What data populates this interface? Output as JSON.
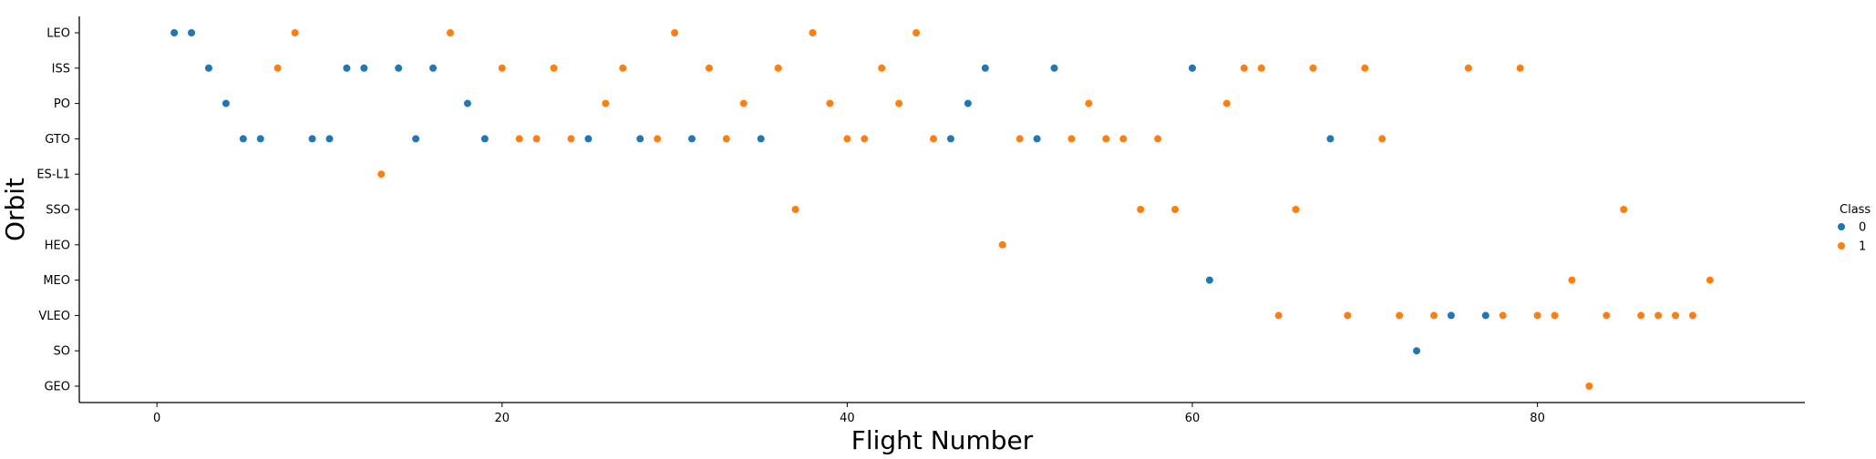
{
  "chart_data": {
    "type": "scatter",
    "title": "",
    "xlabel": "Flight Number",
    "ylabel": "Orbit",
    "xlim": [
      -4.5,
      95.5
    ],
    "xticks": [
      0,
      20,
      40,
      60,
      80
    ],
    "categories": [
      "LEO",
      "ISS",
      "PO",
      "GTO",
      "ES-L1",
      "SSO",
      "HEO",
      "MEO",
      "VLEO",
      "SO",
      "GEO"
    ],
    "grid": false,
    "legend": {
      "title": "Class",
      "placement": "right",
      "entries": [
        "0",
        "1"
      ]
    },
    "colors": {
      "0": "#1f77b4",
      "1": "#ff7f0e"
    },
    "series": [
      {
        "name": "0",
        "points": [
          {
            "x": 1,
            "y": "LEO"
          },
          {
            "x": 2,
            "y": "LEO"
          },
          {
            "x": 3,
            "y": "ISS"
          },
          {
            "x": 4,
            "y": "PO"
          },
          {
            "x": 5,
            "y": "GTO"
          },
          {
            "x": 6,
            "y": "GTO"
          },
          {
            "x": 9,
            "y": "GTO"
          },
          {
            "x": 10,
            "y": "GTO"
          },
          {
            "x": 11,
            "y": "ISS"
          },
          {
            "x": 12,
            "y": "ISS"
          },
          {
            "x": 14,
            "y": "ISS"
          },
          {
            "x": 15,
            "y": "GTO"
          },
          {
            "x": 16,
            "y": "ISS"
          },
          {
            "x": 18,
            "y": "PO"
          },
          {
            "x": 19,
            "y": "GTO"
          },
          {
            "x": 25,
            "y": "GTO"
          },
          {
            "x": 28,
            "y": "GTO"
          },
          {
            "x": 31,
            "y": "GTO"
          },
          {
            "x": 35,
            "y": "GTO"
          },
          {
            "x": 46,
            "y": "GTO"
          },
          {
            "x": 47,
            "y": "PO"
          },
          {
            "x": 48,
            "y": "ISS"
          },
          {
            "x": 51,
            "y": "GTO"
          },
          {
            "x": 52,
            "y": "ISS"
          },
          {
            "x": 60,
            "y": "ISS"
          },
          {
            "x": 61,
            "y": "MEO"
          },
          {
            "x": 68,
            "y": "GTO"
          },
          {
            "x": 73,
            "y": "SO"
          },
          {
            "x": 75,
            "y": "VLEO"
          },
          {
            "x": 77,
            "y": "VLEO"
          }
        ]
      },
      {
        "name": "1",
        "points": [
          {
            "x": 7,
            "y": "ISS"
          },
          {
            "x": 8,
            "y": "LEO"
          },
          {
            "x": 13,
            "y": "ES-L1"
          },
          {
            "x": 17,
            "y": "LEO"
          },
          {
            "x": 20,
            "y": "ISS"
          },
          {
            "x": 21,
            "y": "GTO"
          },
          {
            "x": 22,
            "y": "GTO"
          },
          {
            "x": 23,
            "y": "ISS"
          },
          {
            "x": 24,
            "y": "GTO"
          },
          {
            "x": 26,
            "y": "PO"
          },
          {
            "x": 27,
            "y": "ISS"
          },
          {
            "x": 29,
            "y": "GTO"
          },
          {
            "x": 30,
            "y": "LEO"
          },
          {
            "x": 32,
            "y": "ISS"
          },
          {
            "x": 33,
            "y": "GTO"
          },
          {
            "x": 34,
            "y": "PO"
          },
          {
            "x": 36,
            "y": "ISS"
          },
          {
            "x": 37,
            "y": "SSO"
          },
          {
            "x": 38,
            "y": "LEO"
          },
          {
            "x": 39,
            "y": "PO"
          },
          {
            "x": 40,
            "y": "GTO"
          },
          {
            "x": 41,
            "y": "GTO"
          },
          {
            "x": 42,
            "y": "ISS"
          },
          {
            "x": 43,
            "y": "PO"
          },
          {
            "x": 44,
            "y": "LEO"
          },
          {
            "x": 45,
            "y": "GTO"
          },
          {
            "x": 49,
            "y": "HEO"
          },
          {
            "x": 50,
            "y": "GTO"
          },
          {
            "x": 53,
            "y": "GTO"
          },
          {
            "x": 54,
            "y": "PO"
          },
          {
            "x": 55,
            "y": "GTO"
          },
          {
            "x": 56,
            "y": "GTO"
          },
          {
            "x": 57,
            "y": "SSO"
          },
          {
            "x": 58,
            "y": "GTO"
          },
          {
            "x": 59,
            "y": "SSO"
          },
          {
            "x": 62,
            "y": "PO"
          },
          {
            "x": 63,
            "y": "ISS"
          },
          {
            "x": 64,
            "y": "ISS"
          },
          {
            "x": 65,
            "y": "VLEO"
          },
          {
            "x": 66,
            "y": "SSO"
          },
          {
            "x": 67,
            "y": "ISS"
          },
          {
            "x": 69,
            "y": "VLEO"
          },
          {
            "x": 70,
            "y": "ISS"
          },
          {
            "x": 71,
            "y": "GTO"
          },
          {
            "x": 72,
            "y": "VLEO"
          },
          {
            "x": 74,
            "y": "VLEO"
          },
          {
            "x": 76,
            "y": "ISS"
          },
          {
            "x": 78,
            "y": "VLEO"
          },
          {
            "x": 79,
            "y": "ISS"
          },
          {
            "x": 80,
            "y": "VLEO"
          },
          {
            "x": 81,
            "y": "VLEO"
          },
          {
            "x": 82,
            "y": "MEO"
          },
          {
            "x": 83,
            "y": "GEO"
          },
          {
            "x": 84,
            "y": "VLEO"
          },
          {
            "x": 85,
            "y": "SSO"
          },
          {
            "x": 86,
            "y": "VLEO"
          },
          {
            "x": 87,
            "y": "VLEO"
          },
          {
            "x": 88,
            "y": "VLEO"
          },
          {
            "x": 89,
            "y": "VLEO"
          },
          {
            "x": 90,
            "y": "MEO"
          }
        ]
      }
    ]
  }
}
